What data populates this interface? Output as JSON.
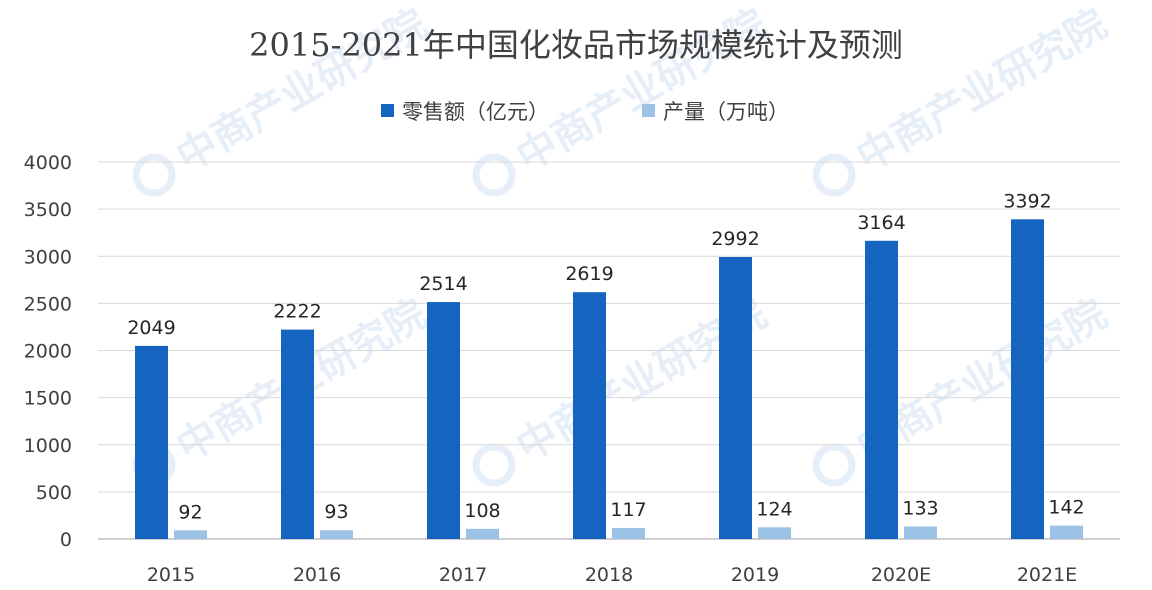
{
  "watermark": "中商产业研究院",
  "colors": {
    "retail": "#1565c0",
    "production": "#9cc3e6",
    "grid": "#d9d9d9",
    "axis": "#bfbfbf",
    "text": "#404040"
  },
  "chart_data": {
    "type": "bar",
    "title": "2015-2021年中国化妆品市场规模统计及预测",
    "categories": [
      "2015",
      "2016",
      "2017",
      "2018",
      "2019",
      "2020E",
      "2021E"
    ],
    "series": [
      {
        "name": "零售额（亿元）",
        "values": [
          2049,
          2222,
          2514,
          2619,
          2992,
          3164,
          3392
        ]
      },
      {
        "name": "产量（万吨）",
        "values": [
          92,
          93,
          108,
          117,
          124,
          133,
          142
        ]
      }
    ],
    "ylim": [
      0,
      4000
    ],
    "yticks": [
      0,
      500,
      1000,
      1500,
      2000,
      2500,
      3000,
      3500,
      4000
    ],
    "grid": true,
    "legend_position": "top-center",
    "xlabel": "",
    "ylabel": ""
  }
}
